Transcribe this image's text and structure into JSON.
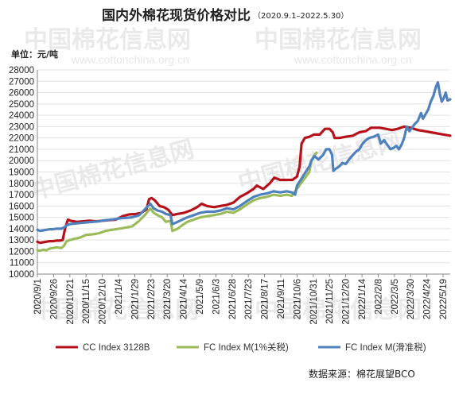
{
  "chart_data": {
    "type": "line",
    "title": "国内外棉花现货价格对比",
    "subtitle": "（2020.9.1–2022.5.30）",
    "unit_label": "单位：元/吨",
    "ylim": [
      10000,
      28000
    ],
    "ytick_step": 1000,
    "grid": "horizontal",
    "legend_position": "bottom",
    "source": "数据来源：棉花展望BCO",
    "x_tick_labels": [
      "2020/9/1",
      "2020/9/26",
      "2020/10/21",
      "2020/11/15",
      "2020/12/10",
      "2021/1/4",
      "2021/1/29",
      "2021/2/23",
      "2021/3/20",
      "2021/4/14",
      "2021/5/9",
      "2021/6/3",
      "2021/6/28",
      "2021/7/23",
      "2021/8/17",
      "2021/9/11",
      "2021/10/6",
      "2021/10/31",
      "2021/11/25",
      "2021/12/20",
      "2022/1/14",
      "2022/2/8",
      "2022/3/5",
      "2022/3/30",
      "2022/4/24",
      "2022/5/19"
    ],
    "series": [
      {
        "name": "CC Index 3128B",
        "color": "#b5121b",
        "points": [
          [
            "2020/9/1",
            12850
          ],
          [
            "2020/9/5",
            12750
          ],
          [
            "2020/9/10",
            12800
          ],
          [
            "2020/9/15",
            12850
          ],
          [
            "2020/9/20",
            12900
          ],
          [
            "2020/9/25",
            12900
          ],
          [
            "2020/9/30",
            12950
          ],
          [
            "2020/10/5",
            12950
          ],
          [
            "2020/10/10",
            13000
          ],
          [
            "2020/10/14",
            14100
          ],
          [
            "2020/10/18",
            14800
          ],
          [
            "2020/10/22",
            14700
          ],
          [
            "2020/10/27",
            14650
          ],
          [
            "2020/11/1",
            14600
          ],
          [
            "2020/11/10",
            14650
          ],
          [
            "2020/11/20",
            14700
          ],
          [
            "2020/11/30",
            14650
          ],
          [
            "2020/12/10",
            14700
          ],
          [
            "2020/12/20",
            14750
          ],
          [
            "2020/12/31",
            14800
          ],
          [
            "2021/1/10",
            15100
          ],
          [
            "2021/1/20",
            15250
          ],
          [
            "2021/1/31",
            15300
          ],
          [
            "2021/2/8",
            15400
          ],
          [
            "2021/2/16",
            15700
          ],
          [
            "2021/2/20",
            16600
          ],
          [
            "2021/2/24",
            16700
          ],
          [
            "2021/3/1",
            16500
          ],
          [
            "2021/3/8",
            16000
          ],
          [
            "2021/3/15",
            15900
          ],
          [
            "2021/3/22",
            15650
          ],
          [
            "2021/3/28",
            15200
          ],
          [
            "2021/4/5",
            15300
          ],
          [
            "2021/4/15",
            15400
          ],
          [
            "2021/4/25",
            15600
          ],
          [
            "2021/5/5",
            15900
          ],
          [
            "2021/5/12",
            16200
          ],
          [
            "2021/5/20",
            16000
          ],
          [
            "2021/5/31",
            15900
          ],
          [
            "2021/6/10",
            16000
          ],
          [
            "2021/6/20",
            16100
          ],
          [
            "2021/6/30",
            16300
          ],
          [
            "2021/7/10",
            16800
          ],
          [
            "2021/7/20",
            17100
          ],
          [
            "2021/7/31",
            17500
          ],
          [
            "2021/8/5",
            17800
          ],
          [
            "2021/8/15",
            17500
          ],
          [
            "2021/8/25",
            18000
          ],
          [
            "2021/9/1",
            18500
          ],
          [
            "2021/9/10",
            18300
          ],
          [
            "2021/9/20",
            18300
          ],
          [
            "2021/9/29",
            18300
          ],
          [
            "2021/10/6",
            18600
          ],
          [
            "2021/10/10",
            19500
          ],
          [
            "2021/10/13",
            21500
          ],
          [
            "2021/10/18",
            22000
          ],
          [
            "2021/10/25",
            22100
          ],
          [
            "2021/11/1",
            22300
          ],
          [
            "2021/11/10",
            22300
          ],
          [
            "2021/11/18",
            22800
          ],
          [
            "2021/11/25",
            22800
          ],
          [
            "2021/11/30",
            22500
          ],
          [
            "2021/12/3",
            22000
          ],
          [
            "2021/12/10",
            22000
          ],
          [
            "2021/12/20",
            22100
          ],
          [
            "2021/12/31",
            22200
          ],
          [
            "2022/1/10",
            22500
          ],
          [
            "2022/1/20",
            22600
          ],
          [
            "2022/1/28",
            22900
          ],
          [
            "2022/2/10",
            22900
          ],
          [
            "2022/2/20",
            22800
          ],
          [
            "2022/3/1",
            22700
          ],
          [
            "2022/3/10",
            22800
          ],
          [
            "2022/3/20",
            23000
          ],
          [
            "2022/3/30",
            22900
          ],
          [
            "2022/4/10",
            22700
          ],
          [
            "2022/4/20",
            22600
          ],
          [
            "2022/4/30",
            22500
          ],
          [
            "2022/5/10",
            22400
          ],
          [
            "2022/5/20",
            22300
          ],
          [
            "2022/5/30",
            22200
          ]
        ]
      },
      {
        "name": "FC Index M(1%关税)",
        "color": "#9bbb59",
        "points": [
          [
            "2020/9/1",
            12100
          ],
          [
            "2020/9/5",
            12050
          ],
          [
            "2020/9/10",
            12150
          ],
          [
            "2020/9/15",
            12100
          ],
          [
            "2020/9/20",
            12250
          ],
          [
            "2020/9/25",
            12300
          ],
          [
            "2020/9/30",
            12350
          ],
          [
            "2020/10/8",
            12300
          ],
          [
            "2020/10/12",
            12500
          ],
          [
            "2020/10/16",
            12900
          ],
          [
            "2020/10/21",
            13000
          ],
          [
            "2020/10/28",
            13100
          ],
          [
            "2020/11/5",
            13200
          ],
          [
            "2020/11/15",
            13450
          ],
          [
            "2020/11/25",
            13500
          ],
          [
            "2020/12/5",
            13600
          ],
          [
            "2020/12/15",
            13800
          ],
          [
            "2020/12/25",
            13900
          ],
          [
            "2021/1/5",
            14000
          ],
          [
            "2021/1/15",
            14100
          ],
          [
            "2021/1/25",
            14200
          ],
          [
            "2021/2/5",
            14700
          ],
          [
            "2021/2/15",
            15300
          ],
          [
            "2021/2/22",
            15800
          ],
          [
            "2021/2/27",
            15400
          ],
          [
            "2021/3/5",
            15200
          ],
          [
            "2021/3/12",
            15000
          ],
          [
            "2021/3/18",
            14600
          ],
          [
            "2021/3/25",
            14700
          ],
          [
            "2021/3/28",
            13800
          ],
          [
            "2021/4/5",
            14000
          ],
          [
            "2021/4/12",
            14300
          ],
          [
            "2021/4/20",
            14600
          ],
          [
            "2021/4/30",
            14800
          ],
          [
            "2021/5/10",
            15000
          ],
          [
            "2021/5/20",
            15100
          ],
          [
            "2021/5/31",
            15200
          ],
          [
            "2021/6/10",
            15300
          ],
          [
            "2021/6/20",
            15500
          ],
          [
            "2021/6/30",
            15400
          ],
          [
            "2021/7/10",
            15700
          ],
          [
            "2021/7/20",
            16100
          ],
          [
            "2021/7/31",
            16500
          ],
          [
            "2021/8/10",
            16700
          ],
          [
            "2021/8/20",
            16800
          ],
          [
            "2021/8/31",
            17000
          ],
          [
            "2021/9/10",
            16900
          ],
          [
            "2021/9/20",
            17000
          ],
          [
            "2021/9/28",
            16900
          ],
          [
            "2021/10/25",
            19000
          ],
          [
            "2021/10/28",
            20000
          ],
          [
            "2021/11/2",
            20500
          ],
          [
            "2021/11/5",
            20700
          ]
        ]
      },
      {
        "name": "FC Index M(滑准税)",
        "color": "#4f81bd",
        "points": [
          [
            "2020/9/1",
            13900
          ],
          [
            "2020/9/5",
            13800
          ],
          [
            "2020/9/10",
            13850
          ],
          [
            "2020/9/15",
            13900
          ],
          [
            "2020/9/20",
            13950
          ],
          [
            "2020/9/25",
            13950
          ],
          [
            "2020/9/30",
            14000
          ],
          [
            "2020/10/8",
            14000
          ],
          [
            "2020/10/12",
            14100
          ],
          [
            "2020/10/16",
            14300
          ],
          [
            "2020/10/21",
            14400
          ],
          [
            "2020/10/28",
            14450
          ],
          [
            "2020/11/5",
            14500
          ],
          [
            "2020/11/15",
            14550
          ],
          [
            "2020/11/25",
            14600
          ],
          [
            "2020/12/5",
            14650
          ],
          [
            "2020/12/15",
            14750
          ],
          [
            "2020/12/25",
            14800
          ],
          [
            "2021/1/5",
            14900
          ],
          [
            "2021/1/15",
            14950
          ],
          [
            "2021/1/25",
            15000
          ],
          [
            "2021/2/5",
            15200
          ],
          [
            "2021/2/15",
            15800
          ],
          [
            "2021/2/22",
            16200
          ],
          [
            "2021/2/27",
            15800
          ],
          [
            "2021/3/5",
            15600
          ],
          [
            "2021/3/12",
            15500
          ],
          [
            "2021/3/18",
            15300
          ],
          [
            "2021/3/25",
            15200
          ],
          [
            "2021/3/28",
            14400
          ],
          [
            "2021/4/5",
            14600
          ],
          [
            "2021/4/12",
            14800
          ],
          [
            "2021/4/20",
            15000
          ],
          [
            "2021/4/30",
            15200
          ],
          [
            "2021/5/10",
            15400
          ],
          [
            "2021/5/20",
            15500
          ],
          [
            "2021/5/31",
            15500
          ],
          [
            "2021/6/10",
            15600
          ],
          [
            "2021/6/20",
            15800
          ],
          [
            "2021/6/30",
            15700
          ],
          [
            "2021/7/10",
            16000
          ],
          [
            "2021/7/20",
            16400
          ],
          [
            "2021/7/31",
            16800
          ],
          [
            "2021/8/10",
            17000
          ],
          [
            "2021/8/20",
            17100
          ],
          [
            "2021/8/31",
            17300
          ],
          [
            "2021/9/10",
            17200
          ],
          [
            "2021/9/20",
            17300
          ],
          [
            "2021/9/28",
            17200
          ],
          [
            "2021/10/3",
            17000
          ],
          [
            "2021/10/6",
            17800
          ],
          [
            "2021/10/25",
            19500
          ],
          [
            "2021/10/28",
            20000
          ],
          [
            "2021/11/2",
            20400
          ],
          [
            "2021/11/8",
            20100
          ],
          [
            "2021/11/15",
            20500
          ],
          [
            "2021/11/20",
            21000
          ],
          [
            "2021/11/25",
            21000
          ],
          [
            "2021/11/29",
            20500
          ],
          [
            "2021/12/1",
            19100
          ],
          [
            "2021/12/5",
            19300
          ],
          [
            "2021/12/10",
            19500
          ],
          [
            "2021/12/15",
            19800
          ],
          [
            "2021/12/20",
            19700
          ],
          [
            "2021/12/25",
            20100
          ],
          [
            "2021/12/31",
            20500
          ],
          [
            "2022/1/5",
            20800
          ],
          [
            "2022/1/10",
            21000
          ],
          [
            "2022/1/15",
            21500
          ],
          [
            "2022/1/20",
            21800
          ],
          [
            "2022/1/25",
            22000
          ],
          [
            "2022/2/1",
            22100
          ],
          [
            "2022/2/8",
            22300
          ],
          [
            "2022/2/12",
            21500
          ],
          [
            "2022/2/17",
            21800
          ],
          [
            "2022/2/22",
            21400
          ],
          [
            "2022/2/27",
            21000
          ],
          [
            "2022/3/3",
            21100
          ],
          [
            "2022/3/8",
            21300
          ],
          [
            "2022/3/12",
            21000
          ],
          [
            "2022/3/16",
            21400
          ],
          [
            "2022/3/20",
            22000
          ],
          [
            "2022/3/24",
            23000
          ],
          [
            "2022/3/28",
            22600
          ],
          [
            "2022/4/1",
            22900
          ],
          [
            "2022/4/5",
            23200
          ],
          [
            "2022/4/10",
            23500
          ],
          [
            "2022/4/15",
            24200
          ],
          [
            "2022/4/18",
            23700
          ],
          [
            "2022/4/22",
            24100
          ],
          [
            "2022/4/26",
            24500
          ],
          [
            "2022/4/30",
            25200
          ],
          [
            "2022/5/4",
            25700
          ],
          [
            "2022/5/8",
            26500
          ],
          [
            "2022/5/11",
            26900
          ],
          [
            "2022/5/14",
            25900
          ],
          [
            "2022/5/17",
            25200
          ],
          [
            "2022/5/20",
            25500
          ],
          [
            "2022/5/23",
            26000
          ],
          [
            "2022/5/26",
            25300
          ],
          [
            "2022/5/30",
            25400
          ]
        ]
      }
    ]
  }
}
